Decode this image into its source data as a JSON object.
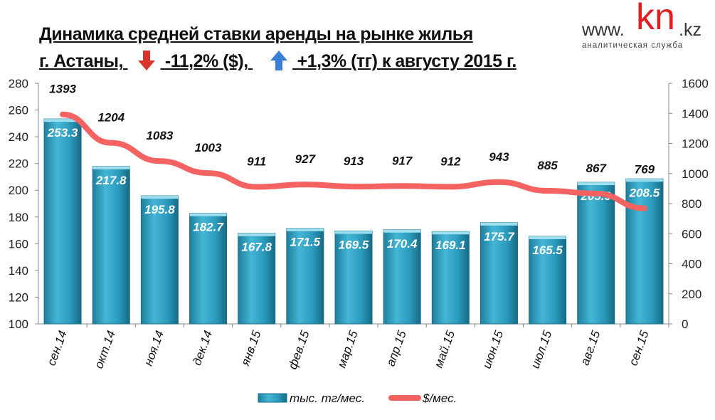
{
  "header": {
    "title_line1": "Динамика средней  ставки аренды на рынке жилья",
    "title_city": "г. Астаны,",
    "usd_change": "-11,2% ($),",
    "kzt_change": "+1,3% (тг) к августу 2015 г.",
    "down_arrow_color": "#d9342b",
    "up_arrow_color": "#3a7fd5"
  },
  "logo": {
    "prefix": "www.",
    "brand": "kn",
    "suffix": ".kz",
    "tagline": "аналитическая служба",
    "brand_color": "#e02020"
  },
  "chart_data": {
    "type": "bar+line",
    "categories": [
      "сен.14",
      "окт.14",
      "ноя.14",
      "дек.14",
      "янв.15",
      "фев.15",
      "мар.15",
      "апр.15",
      "май.15",
      "июн.15",
      "июл.15",
      "авг.15",
      "сен.15"
    ],
    "series": [
      {
        "name": "тыс. тг/мес.",
        "type": "bar",
        "axis": "left",
        "color": "#2fa3c4",
        "values": [
          253.3,
          217.8,
          195.8,
          182.7,
          167.8,
          171.5,
          169.5,
          170.4,
          169.1,
          175.7,
          165.5,
          205.9,
          208.5
        ]
      },
      {
        "name": "$/мес.",
        "type": "line",
        "axis": "right",
        "color": "#f46262",
        "values": [
          1393,
          1204,
          1083,
          1003,
          911,
          927,
          913,
          917,
          912,
          943,
          885,
          867,
          769
        ]
      }
    ],
    "left_axis": {
      "min": 100,
      "max": 280,
      "ticks": [
        "100",
        "120",
        "140",
        "160",
        "180",
        "200",
        "220",
        "240",
        "260",
        "280"
      ]
    },
    "right_axis": {
      "min": 0,
      "max": 1600,
      "ticks": [
        "0",
        "200",
        "400",
        "600",
        "800",
        "1000",
        "1200",
        "1400",
        "1600"
      ]
    },
    "legend_position": "bottom"
  }
}
